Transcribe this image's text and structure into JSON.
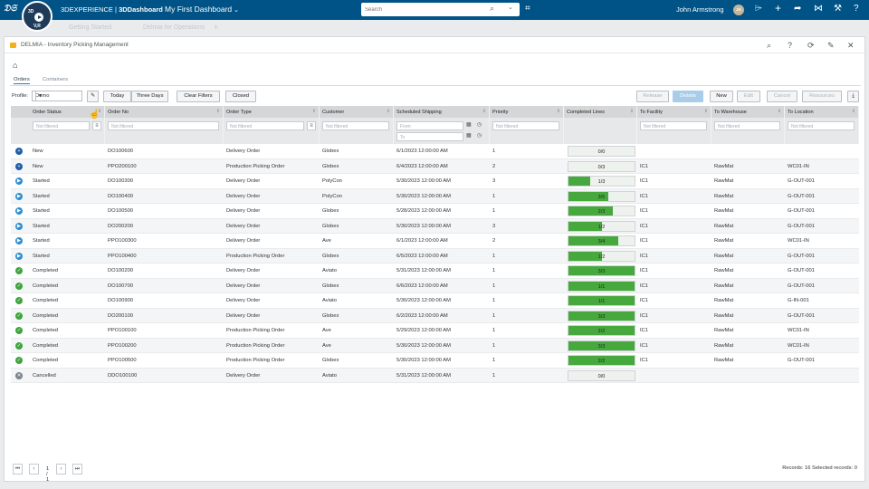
{
  "topbar": {
    "compass_quadrants": [
      "3D",
      "V,R"
    ],
    "brand_prefix": "3DEXPERIENCE",
    "brand_app": "3DDashboard",
    "dashboard_title": "My First Dashboard",
    "search_placeholder": "Search",
    "user_name": "John Armstrong",
    "user_initials": "JA",
    "icons": [
      "tag-icon",
      "bookmark-icon",
      "plus-icon",
      "share-icon",
      "network-icon",
      "tools-icon",
      "help-icon"
    ]
  },
  "ghost_tabs": [
    "Getting Started",
    "Delmia for Operations"
  ],
  "panel": {
    "title": "DELMIA - Inventory Picking Management",
    "header_icons": [
      "search-icon",
      "help-icon",
      "refresh-icon",
      "pin-icon",
      "close-icon"
    ]
  },
  "subtabs": [
    {
      "label": "Orders",
      "active": true
    },
    {
      "label": "Containers",
      "active": false
    }
  ],
  "toolbar": {
    "profile_label": "Profile:",
    "profile_value": "Demo",
    "filter_buttons": [
      "Today",
      "Three Days",
      "Clear Filters",
      "Closed"
    ],
    "action_buttons": [
      {
        "label": "Release",
        "state": "disabled"
      },
      {
        "label": "Details",
        "state": "primary"
      },
      {
        "label": "New",
        "state": "enabled"
      },
      {
        "label": "Edit",
        "state": "disabled"
      },
      {
        "label": "Cancel",
        "state": "disabled"
      },
      {
        "label": "Resources",
        "state": "disabled"
      }
    ]
  },
  "grid": {
    "columns": [
      "Order Status",
      "Order No",
      "Order Type",
      "Customer",
      "Scheduled Shipping",
      "Priority",
      "Completed Lines",
      "To Facility",
      "To Warehouse",
      "To Location"
    ],
    "filter_placeholder": "Not filtered",
    "date_from": "From",
    "date_to": "To",
    "rows": [
      {
        "status": "New",
        "order_no": "DO100600",
        "type": "Delivery Order",
        "customer": "Globex",
        "shipping": "6/1/2023 12:00:00 AM",
        "priority": "1",
        "lines": "0/0",
        "progress": 0,
        "facility": "",
        "warehouse": "",
        "location": ""
      },
      {
        "status": "New",
        "order_no": "PPO200100",
        "type": "Production Picking Order",
        "customer": "Globex",
        "shipping": "6/4/2023 12:00:00 AM",
        "priority": "2",
        "lines": "0/3",
        "progress": 0,
        "facility": "IC1",
        "warehouse": "RawMat",
        "location": "WC01-IN"
      },
      {
        "status": "Started",
        "order_no": "DO100300",
        "type": "Delivery Order",
        "customer": "PolyCon",
        "shipping": "5/30/2023 12:00:00 AM",
        "priority": "3",
        "lines": "1/3",
        "progress": 0.333,
        "facility": "IC1",
        "warehouse": "RawMat",
        "location": "G-OUT-001"
      },
      {
        "status": "Started",
        "order_no": "DO100400",
        "type": "Delivery Order",
        "customer": "PolyCon",
        "shipping": "5/30/2023 12:00:00 AM",
        "priority": "1",
        "lines": "3/5",
        "progress": 0.6,
        "facility": "IC1",
        "warehouse": "RawMat",
        "location": "G-OUT-001"
      },
      {
        "status": "Started",
        "order_no": "DO100500",
        "type": "Delivery Order",
        "customer": "Globex",
        "shipping": "5/28/2023 12:00:00 AM",
        "priority": "1",
        "lines": "2/3",
        "progress": 0.667,
        "facility": "IC1",
        "warehouse": "RawMat",
        "location": "G-OUT-001"
      },
      {
        "status": "Started",
        "order_no": "DO200200",
        "type": "Delivery Order",
        "customer": "Globex",
        "shipping": "5/30/2023 12:00:00 AM",
        "priority": "3",
        "lines": "1/2",
        "progress": 0.5,
        "facility": "IC1",
        "warehouse": "RawMat",
        "location": "G-OUT-001"
      },
      {
        "status": "Started",
        "order_no": "PPO100300",
        "type": "Delivery Order",
        "customer": "Ave",
        "shipping": "6/1/2023 12:00:00 AM",
        "priority": "2",
        "lines": "3/4",
        "progress": 0.75,
        "facility": "IC1",
        "warehouse": "RawMat",
        "location": "WC01-IN"
      },
      {
        "status": "Started",
        "order_no": "PPO100400",
        "type": "Production Picking Order",
        "customer": "Globex",
        "shipping": "6/5/2023 12:00:00 AM",
        "priority": "1",
        "lines": "1/2",
        "progress": 0.5,
        "facility": "IC1",
        "warehouse": "RawMat",
        "location": "G-OUT-001"
      },
      {
        "status": "Completed",
        "order_no": "DO100200",
        "type": "Delivery Order",
        "customer": "Aviato",
        "shipping": "5/31/2023 12:00:00 AM",
        "priority": "1",
        "lines": "3/3",
        "progress": 1,
        "facility": "IC1",
        "warehouse": "RawMat",
        "location": "G-OUT-001"
      },
      {
        "status": "Completed",
        "order_no": "DO100700",
        "type": "Delivery Order",
        "customer": "Globex",
        "shipping": "6/6/2023 12:00:00 AM",
        "priority": "1",
        "lines": "1/1",
        "progress": 1,
        "facility": "IC1",
        "warehouse": "RawMat",
        "location": "G-OUT-001"
      },
      {
        "status": "Completed",
        "order_no": "DO100900",
        "type": "Delivery Order",
        "customer": "Aviato",
        "shipping": "5/30/2023 12:00:00 AM",
        "priority": "1",
        "lines": "1/1",
        "progress": 1,
        "facility": "IC1",
        "warehouse": "RawMat",
        "location": "G-IN-001"
      },
      {
        "status": "Completed",
        "order_no": "DO200100",
        "type": "Delivery Order",
        "customer": "Globex",
        "shipping": "6/2/2023 12:00:00 AM",
        "priority": "1",
        "lines": "3/3",
        "progress": 1,
        "facility": "IC1",
        "warehouse": "RawMat",
        "location": "G-OUT-001"
      },
      {
        "status": "Completed",
        "order_no": "PPO100100",
        "type": "Production Picking Order",
        "customer": "Ave",
        "shipping": "5/29/2023 12:00:00 AM",
        "priority": "1",
        "lines": "2/2",
        "progress": 1,
        "facility": "IC1",
        "warehouse": "RawMat",
        "location": "WC01-IN"
      },
      {
        "status": "Completed",
        "order_no": "PPO100200",
        "type": "Production Picking Order",
        "customer": "Ave",
        "shipping": "5/30/2023 12:00:00 AM",
        "priority": "1",
        "lines": "3/3",
        "progress": 1,
        "facility": "IC1",
        "warehouse": "RawMat",
        "location": "WC01-IN"
      },
      {
        "status": "Completed",
        "order_no": "PPO100500",
        "type": "Production Picking Order",
        "customer": "Globex",
        "shipping": "5/30/2023 12:00:00 AM",
        "priority": "1",
        "lines": "2/2",
        "progress": 1,
        "facility": "IC1",
        "warehouse": "RawMat",
        "location": "G-OUT-001"
      },
      {
        "status": "Cancelled",
        "order_no": "DDO100100",
        "type": "Delivery Order",
        "customer": "Aviato",
        "shipping": "5/31/2023 12:00:00 AM",
        "priority": "1",
        "lines": "0/0",
        "progress": 0,
        "facility": "",
        "warehouse": "",
        "location": ""
      }
    ]
  },
  "pager": {
    "page_text": "1 / 1"
  },
  "records_text": "Records: 16  Selected records: 0",
  "colors": {
    "topbar": "#005386",
    "progress_fill": "#47a93d",
    "status_new": "#1f5fa9",
    "status_started": "#2e8dd1",
    "status_completed": "#3ea43e",
    "status_cancelled": "#7d858c",
    "primary_button": "#a9cde9"
  }
}
